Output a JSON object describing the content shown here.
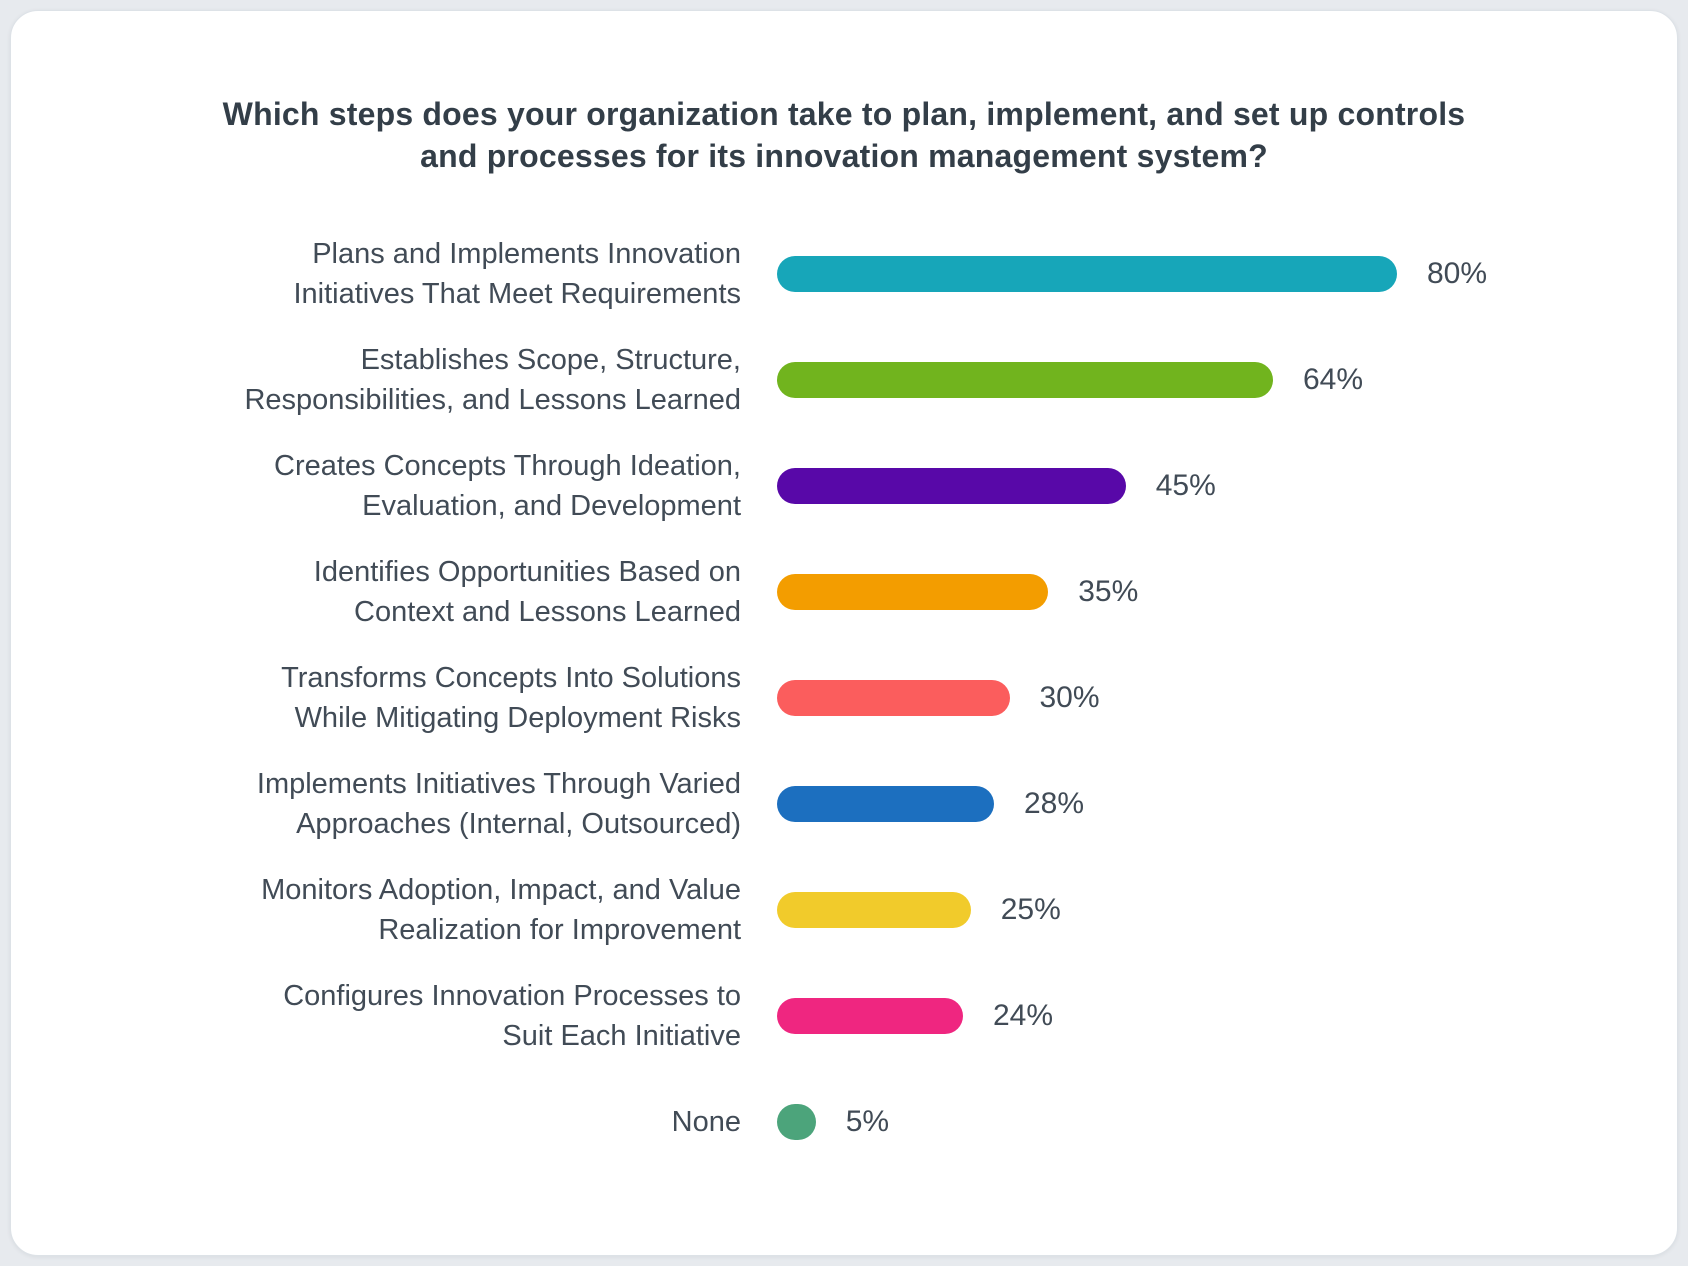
{
  "page": {
    "background_color": "#e7eaee",
    "card_background": "#ffffff",
    "card_border_color": "#dde2e7",
    "title_color": "#333e48",
    "text_color": "#414b56"
  },
  "chart_data": {
    "type": "bar",
    "orientation": "horizontal",
    "title": "Which steps does your organization take to plan, implement, and set up controls\nand processes for its innovation management system?",
    "unit": "%",
    "xlim": [
      0,
      100
    ],
    "grid": false,
    "legend": false,
    "categories": [
      "Plans and Implements Innovation\nInitiatives That Meet Requirements",
      "Establishes Scope, Structure,\nResponsibilities, and Lessons Learned",
      "Creates Concepts Through Ideation,\nEvaluation, and Development",
      "Identifies Opportunities Based on\nContext and Lessons Learned",
      "Transforms Concepts Into Solutions\nWhile Mitigating Deployment Risks",
      "Implements Initiatives Through Varied\nApproaches (Internal, Outsourced)",
      "Monitors Adoption, Impact, and Value\nRealization for Improvement",
      "Configures Innovation Processes to\nSuit Each Initiative",
      "None"
    ],
    "values": [
      80,
      64,
      45,
      35,
      30,
      28,
      25,
      24,
      5
    ],
    "value_labels": [
      "80%",
      "64%",
      "45%",
      "35%",
      "30%",
      "28%",
      "25%",
      "24%",
      "5%"
    ],
    "bar_colors": [
      "#17A6B9",
      "#71B41E",
      "#5808A8",
      "#F39D00",
      "#FB5D5D",
      "#1C6FBF",
      "#F1CB2B",
      "#EF2680",
      "#4CA47B"
    ]
  }
}
